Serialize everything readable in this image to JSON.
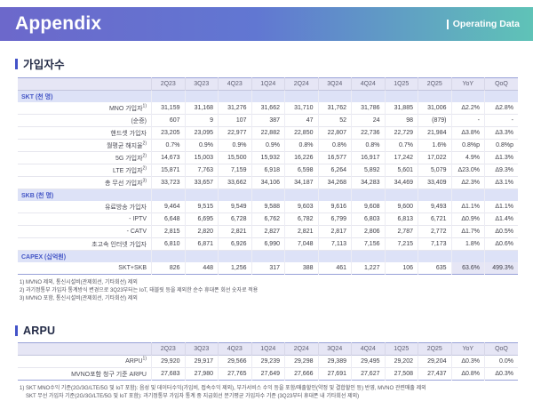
{
  "header": {
    "title": "Appendix",
    "right_label": "Operating Data"
  },
  "sections": {
    "subscribers_title": "가입자수",
    "arpu_title": "ARPU"
  },
  "subscribers_table": {
    "columns": [
      "",
      "2Q23",
      "3Q23",
      "4Q23",
      "1Q24",
      "2Q24",
      "3Q24",
      "4Q24",
      "1Q25",
      "2Q25",
      "YoY",
      "QoQ"
    ],
    "rows": [
      {
        "type": "section",
        "label": "SKT (천 명)"
      },
      {
        "type": "data",
        "label": "MNO 가입자",
        "sup": "1)",
        "values": [
          "31,159",
          "31,168",
          "31,276",
          "31,662",
          "31,710",
          "31,762",
          "31,786",
          "31,885",
          "31,006",
          "Δ2.2%",
          "Δ2.8%"
        ]
      },
      {
        "type": "data",
        "label": "(순증)",
        "values": [
          "607",
          "9",
          "107",
          "387",
          "47",
          "52",
          "24",
          "98",
          "(879)",
          "-",
          "-"
        ]
      },
      {
        "type": "data",
        "label": "핸드셋 가입자",
        "values": [
          "23,205",
          "23,095",
          "22,977",
          "22,882",
          "22,850",
          "22,807",
          "22,736",
          "22,729",
          "21,984",
          "Δ3.8%",
          "Δ3.3%"
        ]
      },
      {
        "type": "data",
        "label": "월평균 해지율",
        "sup": "2)",
        "values": [
          "0.7%",
          "0.9%",
          "0.9%",
          "0.9%",
          "0.8%",
          "0.8%",
          "0.8%",
          "0.7%",
          "1.6%",
          "0.8%p",
          "0.8%p"
        ]
      },
      {
        "type": "data",
        "label": "5G 가입자",
        "sup": "2)",
        "values": [
          "14,673",
          "15,003",
          "15,500",
          "15,932",
          "16,226",
          "16,577",
          "16,917",
          "17,242",
          "17,022",
          "4.9%",
          "Δ1.3%"
        ]
      },
      {
        "type": "data",
        "label": "LTE 가입자",
        "sup": "2)",
        "values": [
          "15,871",
          "7,763",
          "7,159",
          "6,918",
          "6,598",
          "6,264",
          "5,892",
          "5,601",
          "5,079",
          "Δ23.0%",
          "Δ9.3%"
        ]
      },
      {
        "type": "data",
        "label": "총 무선 가입자",
        "sup": "3)",
        "values": [
          "33,723",
          "33,657",
          "33,662",
          "34,106",
          "34,187",
          "34,268",
          "34,283",
          "34,469",
          "33,409",
          "Δ2.3%",
          "Δ3.1%"
        ]
      },
      {
        "type": "section",
        "label": "SKB (천 명)"
      },
      {
        "type": "data",
        "label": "유료방송 가입자",
        "values": [
          "9,464",
          "9,515",
          "9,549",
          "9,588",
          "9,603",
          "9,616",
          "9,608",
          "9,600",
          "9,493",
          "Δ1.1%",
          "Δ1.1%"
        ]
      },
      {
        "type": "data",
        "label": "- IPTV",
        "values": [
          "6,648",
          "6,695",
          "6,728",
          "6,762",
          "6,782",
          "6,799",
          "6,803",
          "6,813",
          "6,721",
          "Δ0.9%",
          "Δ1.4%"
        ]
      },
      {
        "type": "data",
        "label": "- CATV",
        "values": [
          "2,815",
          "2,820",
          "2,821",
          "2,827",
          "2,821",
          "2,817",
          "2,806",
          "2,787",
          "2,772",
          "Δ1.7%",
          "Δ0.5%"
        ]
      },
      {
        "type": "data",
        "label": "초고속 인터넷 가입자",
        "values": [
          "6,810",
          "6,871",
          "6,926",
          "6,990",
          "7,048",
          "7,113",
          "7,156",
          "7,215",
          "7,173",
          "1.8%",
          "Δ0.6%"
        ]
      },
      {
        "type": "section",
        "label": "CAPEX (십억원)"
      },
      {
        "type": "data",
        "label": "SKT+SKB",
        "highlight_last2": true,
        "values": [
          "826",
          "448",
          "1,256",
          "317",
          "388",
          "461",
          "1,227",
          "106",
          "635",
          "63.6%",
          "499.3%"
        ]
      }
    ]
  },
  "subscribers_footnotes": [
    "1) MVNO 제외, 통신시설비(관제회선, 기타회선) 제외",
    "2) 과기정통부 가입자 통계방식 변경으로 3Q23부터는 IoT, 태블릿 등을 제외한 순수 휴대폰 회선 숫자로 적용",
    "3) MVNO 포함, 통신시설비(관제회선, 기타회선) 제외"
  ],
  "arpu_table": {
    "columns": [
      "",
      "2Q23",
      "3Q23",
      "4Q23",
      "1Q24",
      "2Q24",
      "3Q24",
      "4Q24",
      "1Q25",
      "2Q25",
      "YoY",
      "QoQ"
    ],
    "rows": [
      {
        "type": "data",
        "label": "ARPU",
        "sup": "1)",
        "values": [
          "29,920",
          "29,917",
          "29,566",
          "29,239",
          "29,298",
          "29,389",
          "29,495",
          "29,202",
          "29,204",
          "Δ0.3%",
          "0.0%"
        ]
      },
      {
        "type": "data",
        "label": "MVNO포함 청구 기준 ARPU",
        "values": [
          "27,683",
          "27,980",
          "27,765",
          "27,649",
          "27,666",
          "27,691",
          "27,627",
          "27,508",
          "27,437",
          "Δ0.8%",
          "Δ0.3%"
        ]
      }
    ]
  },
  "arpu_footnotes": [
    "1) SKT MNO수익 기준(2G/3G/LTE/5G 및 IoT 포함): 음성 및 데이터수익(가입비, 접속수익 제외), 부가서비스 수익 등을 포함/매출할인(약정 및 결합할인 등) 반영, MVNO 관련매출 제외",
    "SKT 무선 가입자 기준(2G/3G/LTE/5G 및 IoT 포함): 과기정통부 가입자 통계 중 지급회선 분기평균 가입자수 기준 (3Q23부터 휴대폰 내 기타회선 제외)"
  ],
  "colors": {
    "banner_gradient_left": "#6c68cb",
    "banner_gradient_right": "#5fc3b7",
    "section_bar": "#4353c8",
    "table_header_bg": "#e6e6f5",
    "section_row_bg": "#dde2f7",
    "section_row_text": "#4456c6"
  }
}
